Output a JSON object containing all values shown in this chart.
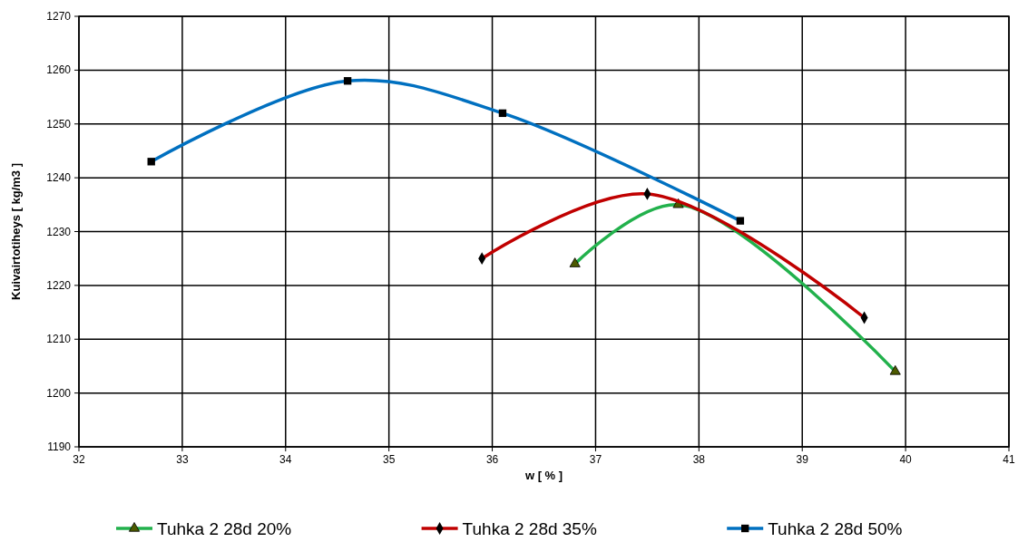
{
  "chart_data": {
    "type": "line",
    "xlabel": "w [ % ]",
    "ylabel": "Kuivairtotiheys [ kg/m3 ]",
    "xlim": [
      32,
      41
    ],
    "xticks": [
      32,
      33,
      34,
      35,
      36,
      37,
      38,
      39,
      40,
      41
    ],
    "ylim": [
      1190,
      1270
    ],
    "yticks": [
      1190,
      1200,
      1210,
      1220,
      1230,
      1240,
      1250,
      1260,
      1270
    ],
    "grid": true,
    "legend": "bottom",
    "series": [
      {
        "name": "Tuhka 2 28d 20%",
        "color": "#22b14c",
        "marker": "triangle",
        "x": [
          36.8,
          37.8,
          39.9
        ],
        "values": [
          1224,
          1235,
          1204
        ]
      },
      {
        "name": "Tuhka 2 28d 35%",
        "color": "#c00000",
        "marker": "diamond",
        "x": [
          35.9,
          37.5,
          39.6
        ],
        "values": [
          1225,
          1237,
          1214
        ]
      },
      {
        "name": "Tuhka 2 28d 50%",
        "color": "#0070c0",
        "marker": "square",
        "x": [
          32.7,
          34.6,
          36.1,
          38.4
        ],
        "values": [
          1243,
          1258,
          1252,
          1232
        ]
      }
    ]
  }
}
